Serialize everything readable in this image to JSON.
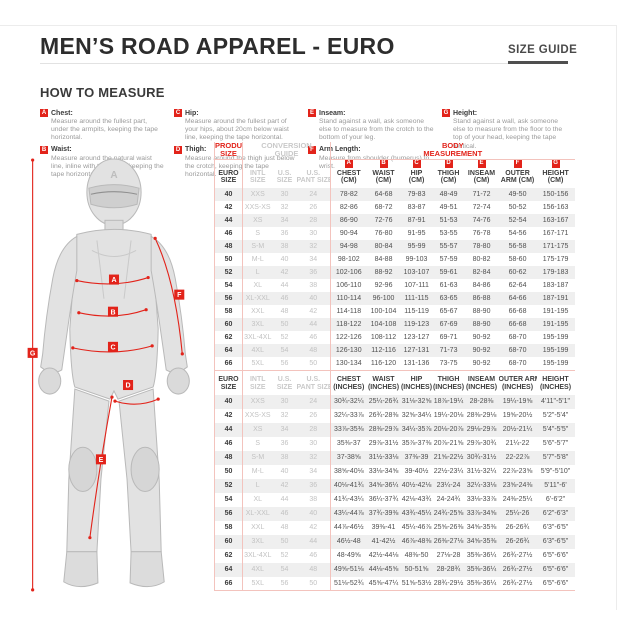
{
  "page": {
    "title": "MEN’S ROAD APPAREL - EURO",
    "size_guide_label": "SIZE GUIDE",
    "how_to_measure_title": "HOW TO MEASURE"
  },
  "colors": {
    "accent_red": "#e2231a",
    "salmon_border": "#f3c3bd",
    "row_stripe": "#efefef"
  },
  "measure_instructions": [
    {
      "letter": "A",
      "name": "Chest:",
      "desc": "Measure around the fullest part, under the armpits, keeping the tape horizontal."
    },
    {
      "letter": "B",
      "name": "Waist:",
      "desc": "Measure around the natural waist line, inline with the navel, keeping the tape horizontal."
    },
    {
      "letter": "C",
      "name": "Hip:",
      "desc": "Measure around the fullest part of your hips, about 20cm below waist line, keeping the tape horizontal."
    },
    {
      "letter": "D",
      "name": "Thigh:",
      "desc": "Measure around the thigh just below the crotch, keeping the tape horizontal."
    },
    {
      "letter": "E",
      "name": "Inseam:",
      "desc": "Stand against a wall, ask someone else to measure from the crotch to the bottom of your leg."
    },
    {
      "letter": "F",
      "name": "Arm Length:",
      "desc": "Measure from shoulder (humerus) to wrist."
    },
    {
      "letter": "G",
      "name": "Height:",
      "desc": "Stand against a wall, ask someone else to measure from the floor to the top of your head, keeping the tape vertical."
    }
  ],
  "figure": {
    "labels": [
      "A",
      "B",
      "C",
      "D",
      "E",
      "F",
      "G"
    ]
  },
  "table": {
    "group_headers": {
      "product_size": [
        "PRODUCT",
        "SIZE"
      ],
      "conversion_guide": [
        "CONVERSION",
        "GUIDE"
      ],
      "body_measurement": [
        "BODY",
        "MEASUREMENT"
      ]
    },
    "size_columns": [
      [
        "EURO",
        "SIZE"
      ],
      [
        "INTL",
        "SIZE"
      ],
      [
        "U.S.",
        "SIZE"
      ],
      [
        "U.S.",
        "PANT SIZE"
      ]
    ],
    "cm_columns": [
      {
        "letter": "A",
        "lines": [
          "CHEST",
          "(CM)"
        ]
      },
      {
        "letter": "B",
        "lines": [
          "WAIST",
          "(CM)"
        ]
      },
      {
        "letter": "C",
        "lines": [
          "HIP",
          "(CM)"
        ]
      },
      {
        "letter": "D",
        "lines": [
          "THIGH",
          "(CM)"
        ]
      },
      {
        "letter": "E",
        "lines": [
          "INSEAM",
          "(CM)"
        ]
      },
      {
        "letter": "F",
        "lines": [
          "OUTER",
          "ARM (CM)"
        ]
      },
      {
        "letter": "G",
        "lines": [
          "HEIGHT",
          "(CM)"
        ]
      }
    ],
    "in_columns": [
      {
        "lines": [
          "CHEST",
          "(INCHES)"
        ]
      },
      {
        "lines": [
          "WAIST",
          "(INCHES)"
        ]
      },
      {
        "lines": [
          "HIP",
          "(INCHES)"
        ]
      },
      {
        "lines": [
          "THIGH",
          "(INCHES)"
        ]
      },
      {
        "lines": [
          "INSEAM",
          "(INCHES)"
        ]
      },
      {
        "lines": [
          "OUTER ARM",
          "(INCHES)"
        ]
      },
      {
        "lines": [
          "HEIGHT",
          "(INCHES)"
        ]
      }
    ],
    "rows": [
      {
        "euro": "40",
        "intl": "XXS",
        "us": "30",
        "pant": "24",
        "cm": [
          "78-82",
          "64-68",
          "79-83",
          "48-49",
          "71-72",
          "49-50",
          "150-156"
        ],
        "in": [
          "30¾-32¼",
          "25¼-26¾",
          "31⅛-32⅝",
          "18⅞-19¼",
          "28-28⅜",
          "19¼-19⅝",
          "4'11\"-5'1\""
        ]
      },
      {
        "euro": "42",
        "intl": "XXS-XS",
        "us": "32",
        "pant": "26",
        "cm": [
          "82-86",
          "68-72",
          "83-87",
          "49-51",
          "72-74",
          "50-52",
          "156-163"
        ],
        "in": [
          "32¼-33⅞",
          "26¾-28⅜",
          "32⅝-34¼",
          "19¼-20⅛",
          "28⅜-29⅛",
          "19⅝-20½",
          "5'2\"-5'4\""
        ]
      },
      {
        "euro": "44",
        "intl": "XS",
        "us": "34",
        "pant": "28",
        "cm": [
          "86-90",
          "72-76",
          "87-91",
          "51-53",
          "74-76",
          "52-54",
          "163-167"
        ],
        "in": [
          "33⅞-35⅜",
          "28⅜-29⅞",
          "34¼-35⅞",
          "20⅛-20⅞",
          "29⅛-29⅞",
          "20½-21¼",
          "5'4\"-5'5\""
        ]
      },
      {
        "euro": "46",
        "intl": "S",
        "us": "36",
        "pant": "30",
        "cm": [
          "90-94",
          "76-80",
          "91-95",
          "53-55",
          "76-78",
          "54-56",
          "167-171"
        ],
        "in": [
          "35⅜-37",
          "29⅞-31½",
          "35⅞-37⅜",
          "20⅞-21⅝",
          "29⅞-30¾",
          "21¼-22",
          "5'6\"-5'7\""
        ]
      },
      {
        "euro": "48",
        "intl": "S-M",
        "us": "38",
        "pant": "32",
        "cm": [
          "94-98",
          "80-84",
          "95-99",
          "55-57",
          "78-80",
          "56-58",
          "171-175"
        ],
        "in": [
          "37-38⅝",
          "31½-33⅛",
          "37⅜-39",
          "21⅝-22½",
          "30¾-31½",
          "22-22⅞",
          "5'7\"-5'8\""
        ]
      },
      {
        "euro": "50",
        "intl": "M-L",
        "us": "40",
        "pant": "34",
        "cm": [
          "98-102",
          "84-88",
          "99-103",
          "57-59",
          "80-82",
          "58-60",
          "175-179"
        ],
        "in": [
          "38⅝-40⅛",
          "33⅛-34⅝",
          "39-40½",
          "22½-23¼",
          "31½-32¼",
          "22⅞-23⅝",
          "5'9\"-5'10\""
        ]
      },
      {
        "euro": "52",
        "intl": "L",
        "us": "42",
        "pant": "36",
        "cm": [
          "102-106",
          "88-92",
          "103-107",
          "59-61",
          "82-84",
          "60-62",
          "179-183"
        ],
        "in": [
          "40⅛-41¾",
          "34⅝-36¼",
          "40½-42⅛",
          "23¼-24",
          "32¼-33⅛",
          "23⅝-24⅜",
          "5'11\"-6'"
        ]
      },
      {
        "euro": "54",
        "intl": "XL",
        "us": "44",
        "pant": "38",
        "cm": [
          "106-110",
          "92-96",
          "107-111",
          "61-63",
          "84-86",
          "62-64",
          "183-187"
        ],
        "in": [
          "41¾-43¼",
          "36¼-37¾",
          "42⅛-43¾",
          "24-24¾",
          "33⅛-33⅞",
          "24⅜-25¼",
          "6'-6'2\""
        ]
      },
      {
        "euro": "56",
        "intl": "XL-XXL",
        "us": "46",
        "pant": "40",
        "cm": [
          "110-114",
          "96-100",
          "111-115",
          "63-65",
          "86-88",
          "64-66",
          "187-191"
        ],
        "in": [
          "43¼-44⅞",
          "37¾-39⅜",
          "43¾-45¼",
          "24¾-25⅝",
          "33⅞-34⅝",
          "25¼-26",
          "6'2\"-6'3\""
        ]
      },
      {
        "euro": "58",
        "intl": "XXL",
        "us": "48",
        "pant": "42",
        "cm": [
          "114-118",
          "100-104",
          "115-119",
          "65-67",
          "88-90",
          "66-68",
          "191-195"
        ],
        "in": [
          "44⅞-46½",
          "39⅜-41",
          "45¼-46⅞",
          "25⅝-26⅜",
          "34⅝-35⅜",
          "26-26¾",
          "6'3\"-6'5\""
        ]
      },
      {
        "euro": "60",
        "intl": "3XL",
        "us": "50",
        "pant": "44",
        "cm": [
          "118-122",
          "104-108",
          "119-123",
          "67-69",
          "88-90",
          "66-68",
          "191-195"
        ],
        "in": [
          "46½-48",
          "41-42½",
          "46⅞-48⅜",
          "26⅜-27⅛",
          "34⅝-35⅜",
          "26-26¾",
          "6'3\"-6'5\""
        ]
      },
      {
        "euro": "62",
        "intl": "3XL-4XL",
        "us": "52",
        "pant": "46",
        "cm": [
          "122-126",
          "108-112",
          "123-127",
          "69-71",
          "90-92",
          "68-70",
          "195-199"
        ],
        "in": [
          "48-49⅝",
          "42½-44⅛",
          "48⅜-50",
          "27⅛-28",
          "35⅜-36¼",
          "26¾-27½",
          "6'5\"-6'6\""
        ]
      },
      {
        "euro": "64",
        "intl": "4XL",
        "us": "54",
        "pant": "48",
        "cm": [
          "126-130",
          "112-116",
          "127-131",
          "71-73",
          "90-92",
          "68-70",
          "195-199"
        ],
        "in": [
          "49⅝-51⅛",
          "44⅛-45⅝",
          "50-51⅝",
          "28-28¾",
          "35⅜-36¼",
          "26¾-27½",
          "6'5\"-6'6\""
        ]
      },
      {
        "euro": "66",
        "intl": "5XL",
        "us": "56",
        "pant": "50",
        "cm": [
          "130-134",
          "116-120",
          "131-136",
          "73-75",
          "90-92",
          "68-70",
          "195-199"
        ],
        "in": [
          "51⅛-52¾",
          "45⅝-47¼",
          "51⅝-53½",
          "28¾-29½",
          "35⅜-36¼",
          "26¾-27½",
          "6'5\"-6'6\""
        ]
      }
    ]
  }
}
